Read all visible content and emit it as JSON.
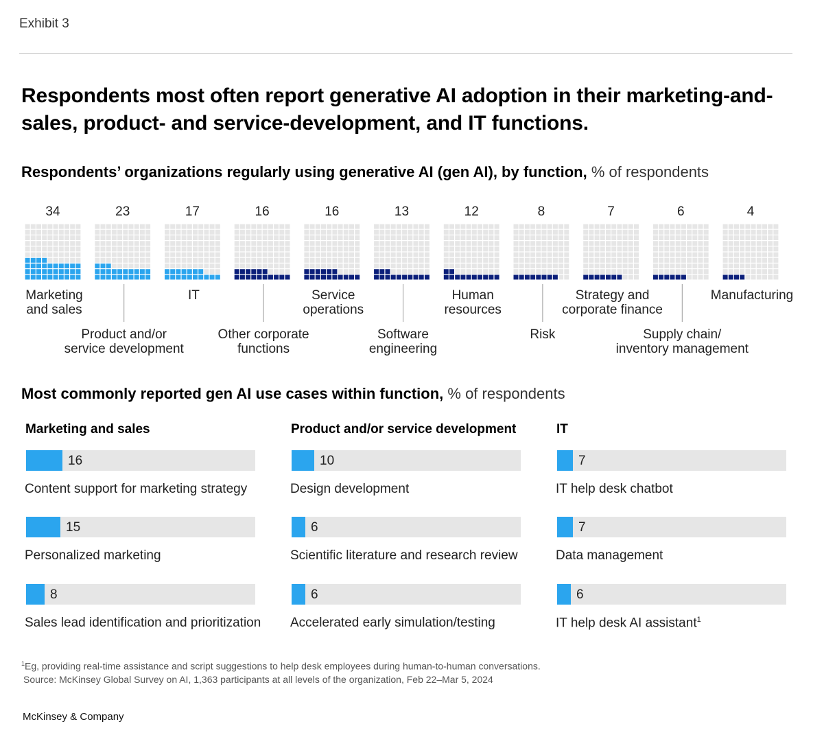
{
  "exhibit": "Exhibit 3",
  "title": "Respondents most often report generative AI adoption in their marketing-and-sales, product- and service-development, and IT functions.",
  "section1": {
    "title_bold": "Respondents’ organizations regularly using generative AI (gen AI), by function,",
    "title_light": " % of respondents"
  },
  "section2": {
    "title_bold": "Most commonly reported gen AI use cases within function,",
    "title_light": " % of respondents"
  },
  "colors": {
    "highlight": "#2ba5ee",
    "dark": "#0b1f7a",
    "empty": "#e6e6e6",
    "track": "#e6e6e6"
  },
  "chart_data": [
    {
      "type": "waffle",
      "unit": "% of respondents",
      "categories": [
        {
          "name": "Marketing and sales",
          "label_lines": [
            "Marketing",
            "and sales"
          ],
          "value": 34,
          "highlight": true
        },
        {
          "name": "Product and/or service development",
          "label_lines": [
            "Product and/or",
            "service development"
          ],
          "value": 23,
          "highlight": true
        },
        {
          "name": "IT",
          "label_lines": [
            "IT"
          ],
          "value": 17,
          "highlight": true
        },
        {
          "name": "Other corporate functions",
          "label_lines": [
            "Other corporate",
            "functions"
          ],
          "value": 16,
          "highlight": false
        },
        {
          "name": "Service operations",
          "label_lines": [
            "Service",
            "operations"
          ],
          "value": 16,
          "highlight": false
        },
        {
          "name": "Software engineering",
          "label_lines": [
            "Software",
            "engineering"
          ],
          "value": 13,
          "highlight": false
        },
        {
          "name": "Human resources",
          "label_lines": [
            "Human",
            "resources"
          ],
          "value": 12,
          "highlight": false
        },
        {
          "name": "Risk",
          "label_lines": [
            "Risk"
          ],
          "value": 8,
          "highlight": false
        },
        {
          "name": "Strategy and corporate finance",
          "label_lines": [
            "Strategy and",
            "corporate finance"
          ],
          "value": 7,
          "highlight": false
        },
        {
          "name": "Supply chain/inventory management",
          "label_lines": [
            "Supply chain/",
            "inventory management"
          ],
          "value": 6,
          "highlight": false
        },
        {
          "name": "Manufacturing",
          "label_lines": [
            "Manufacturing"
          ],
          "value": 4,
          "highlight": false
        }
      ]
    },
    {
      "type": "bar",
      "title": "Marketing and sales",
      "categories": [
        "Content support for marketing strategy",
        "Personalized marketing",
        "Sales lead identification and prioritization"
      ],
      "values": [
        16,
        15,
        8
      ],
      "ylim": [
        0,
        100
      ]
    },
    {
      "type": "bar",
      "title": "Product and/or service development",
      "categories": [
        "Design development",
        "Scientific literature and research review",
        "Accelerated early simulation/testing"
      ],
      "values": [
        10,
        6,
        6
      ],
      "ylim": [
        0,
        100
      ]
    },
    {
      "type": "bar",
      "title": "IT",
      "categories": [
        "IT help desk chatbot",
        "Data management",
        "IT help desk AI assistant"
      ],
      "values": [
        7,
        7,
        6
      ],
      "footnote_marks": [
        "",
        "",
        "1"
      ],
      "ylim": [
        0,
        100
      ]
    }
  ],
  "footnote": {
    "mark": "1",
    "text": "Eg, providing real-time assistance and script suggestions to help desk employees during human-to-human conversations.",
    "source": "Source: McKinsey Global Survey on AI, 1,363 participants at all levels of the organization, Feb 22–Mar 5, 2024"
  },
  "brand": "McKinsey & Company"
}
